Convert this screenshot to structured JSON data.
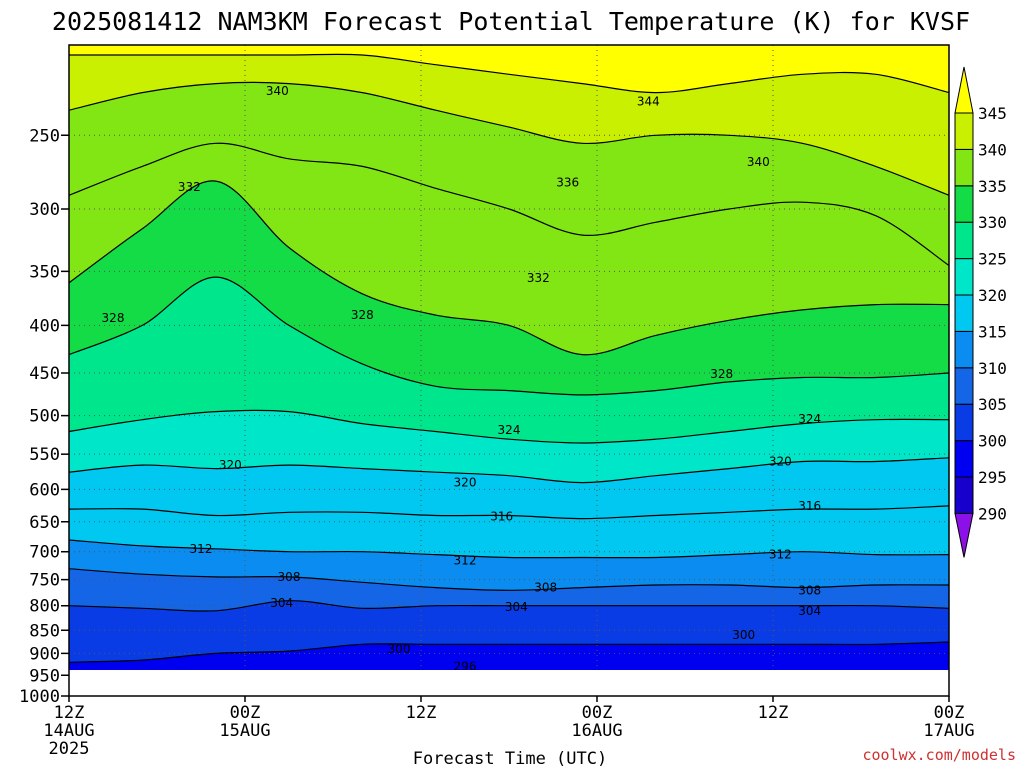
{
  "title": "2025081412 NAM3KM Forecast Potential Temperature (K) for KVSF",
  "xlabel": "Forecast Time (UTC)",
  "credit": "coolwx.com/models",
  "colors": {
    "ground": "#a05a32",
    "contour": "#000000",
    "grid": "#555555"
  },
  "chart_data": {
    "type": "heatmap",
    "title": "2025081412 NAM3KM Forecast Potential Temperature (K) for KVSF",
    "xlabel": "Forecast Time (UTC)",
    "ylabel": "",
    "x_ticks": [
      {
        "hour": 0,
        "l1": "12Z",
        "l2": "14AUG",
        "l3": "2025"
      },
      {
        "hour": 12,
        "l1": "00Z",
        "l2": "15AUG",
        "l3": ""
      },
      {
        "hour": 24,
        "l1": "12Z",
        "l2": "",
        "l3": ""
      },
      {
        "hour": 36,
        "l1": "00Z",
        "l2": "16AUG",
        "l3": ""
      },
      {
        "hour": 48,
        "l1": "12Z",
        "l2": "",
        "l3": ""
      },
      {
        "hour": 60,
        "l1": "00Z",
        "l2": "17AUG",
        "l3": ""
      }
    ],
    "xlim": [
      0,
      60
    ],
    "y_ticks": [
      250,
      300,
      350,
      400,
      450,
      500,
      550,
      600,
      650,
      700,
      750,
      800,
      850,
      900,
      950,
      1000
    ],
    "ylim": [
      200,
      1000
    ],
    "y_scale": "log-pressure (inverted)",
    "grid": true,
    "colorbar": {
      "levels": [
        290,
        295,
        300,
        305,
        310,
        315,
        320,
        325,
        330,
        335,
        340,
        345
      ],
      "colors": [
        "#8c10e8",
        "#1800cc",
        "#0000f0",
        "#0a3ce6",
        "#1466e6",
        "#0a8cf0",
        "#00c8f0",
        "#00e6c8",
        "#00e68c",
        "#14dc46",
        "#82e614",
        "#c8f000",
        "#ffff00"
      ]
    },
    "contours": [
      {
        "level": 296,
        "pressures": [
          955,
          955,
          955,
          955,
          955,
          955,
          955,
          955,
          955,
          955,
          955,
          955,
          955
        ]
      },
      {
        "level": 300,
        "pressures": [
          920,
          915,
          900,
          895,
          880,
          880,
          880,
          880,
          880,
          880,
          880,
          880,
          875
        ]
      },
      {
        "level": 304,
        "pressures": [
          800,
          805,
          810,
          790,
          805,
          800,
          800,
          800,
          800,
          800,
          800,
          800,
          805
        ]
      },
      {
        "level": 308,
        "pressures": [
          730,
          740,
          745,
          745,
          755,
          765,
          770,
          765,
          760,
          760,
          765,
          760,
          760
        ]
      },
      {
        "level": 312,
        "pressures": [
          680,
          690,
          695,
          700,
          700,
          705,
          710,
          710,
          710,
          705,
          700,
          705,
          705
        ]
      },
      {
        "level": 316,
        "pressures": [
          630,
          630,
          640,
          635,
          635,
          640,
          640,
          645,
          640,
          635,
          630,
          630,
          625
        ]
      },
      {
        "level": 320,
        "pressures": [
          575,
          565,
          570,
          565,
          570,
          575,
          580,
          590,
          580,
          570,
          560,
          560,
          555
        ]
      },
      {
        "level": 324,
        "pressures": [
          520,
          505,
          495,
          495,
          510,
          520,
          530,
          535,
          530,
          520,
          510,
          505,
          505
        ]
      },
      {
        "level": 328,
        "pressures": [
          430,
          400,
          355,
          400,
          440,
          465,
          470,
          475,
          470,
          460,
          455,
          455,
          450
        ]
      },
      {
        "level": 332,
        "pressures": [
          360,
          315,
          280,
          330,
          370,
          390,
          400,
          430,
          410,
          395,
          385,
          380,
          380
        ]
      },
      {
        "level": 336,
        "pressures": [
          290,
          270,
          255,
          265,
          270,
          285,
          300,
          320,
          310,
          300,
          295,
          305,
          345
        ]
      },
      {
        "level": 340,
        "pressures": [
          235,
          225,
          220,
          220,
          225,
          235,
          245,
          255,
          250,
          250,
          255,
          270,
          290
        ]
      },
      {
        "level": 344,
        "pressures": [
          205,
          205,
          205,
          205,
          205,
          210,
          215,
          220,
          225,
          220,
          215,
          215,
          225
        ]
      }
    ],
    "contour_labels": [
      {
        "text": "340",
        "hour": 14.2,
        "p": 224
      },
      {
        "text": "344",
        "hour": 39.5,
        "p": 230
      },
      {
        "text": "332",
        "hour": 8.2,
        "p": 284
      },
      {
        "text": "336",
        "hour": 34.0,
        "p": 281
      },
      {
        "text": "340",
        "hour": 47.0,
        "p": 267
      },
      {
        "text": "332",
        "hour": 32.0,
        "p": 356
      },
      {
        "text": "328",
        "hour": 3.0,
        "p": 393
      },
      {
        "text": "328",
        "hour": 20.0,
        "p": 390
      },
      {
        "text": "328",
        "hour": 44.5,
        "p": 451
      },
      {
        "text": "324",
        "hour": 30.0,
        "p": 518
      },
      {
        "text": "324",
        "hour": 50.5,
        "p": 504
      },
      {
        "text": "320",
        "hour": 11.0,
        "p": 565
      },
      {
        "text": "320",
        "hour": 27.0,
        "p": 590
      },
      {
        "text": "320",
        "hour": 48.5,
        "p": 560
      },
      {
        "text": "316",
        "hour": 29.5,
        "p": 642
      },
      {
        "text": "316",
        "hour": 50.5,
        "p": 625
      },
      {
        "text": "312",
        "hour": 9.0,
        "p": 695
      },
      {
        "text": "312",
        "hour": 27.0,
        "p": 715
      },
      {
        "text": "312",
        "hour": 48.5,
        "p": 705
      },
      {
        "text": "308",
        "hour": 15.0,
        "p": 745
      },
      {
        "text": "308",
        "hour": 32.5,
        "p": 765
      },
      {
        "text": "308",
        "hour": 50.5,
        "p": 770
      },
      {
        "text": "304",
        "hour": 14.5,
        "p": 795
      },
      {
        "text": "304",
        "hour": 30.5,
        "p": 802
      },
      {
        "text": "304",
        "hour": 50.5,
        "p": 810
      },
      {
        "text": "300",
        "hour": 22.5,
        "p": 890
      },
      {
        "text": "300",
        "hour": 46.0,
        "p": 860
      },
      {
        "text": "296",
        "hour": 27.0,
        "p": 930
      },
      {
        "text": "296",
        "hour": 44.0,
        "p": 952
      }
    ]
  }
}
